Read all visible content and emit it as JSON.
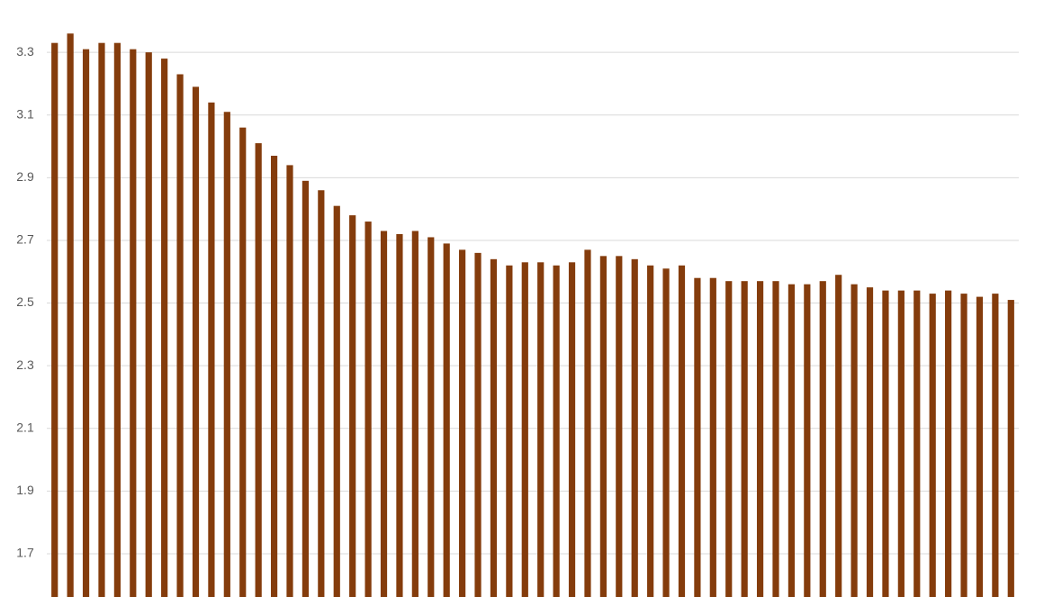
{
  "chart_data": {
    "type": "bar",
    "values": [
      3.33,
      3.36,
      3.31,
      3.33,
      3.33,
      3.31,
      3.3,
      3.28,
      3.23,
      3.19,
      3.14,
      3.11,
      3.06,
      3.01,
      2.97,
      2.94,
      2.89,
      2.86,
      2.81,
      2.78,
      2.76,
      2.73,
      2.72,
      2.73,
      2.71,
      2.69,
      2.67,
      2.66,
      2.64,
      2.62,
      2.63,
      2.63,
      2.62,
      2.63,
      2.67,
      2.65,
      2.65,
      2.64,
      2.62,
      2.61,
      2.62,
      2.58,
      2.58,
      2.57,
      2.57,
      2.57,
      2.57,
      2.56,
      2.56,
      2.57,
      2.59,
      2.56,
      2.55,
      2.54,
      2.54,
      2.54,
      2.53,
      2.54,
      2.53,
      2.52,
      2.53,
      2.51
    ],
    "color": "#843c0c",
    "ylim": [
      1.562,
      3.467
    ],
    "yticks": [
      1.7,
      1.9,
      2.1,
      2.3,
      2.5,
      2.7,
      2.9,
      3.1,
      3.3
    ],
    "grid": true
  }
}
